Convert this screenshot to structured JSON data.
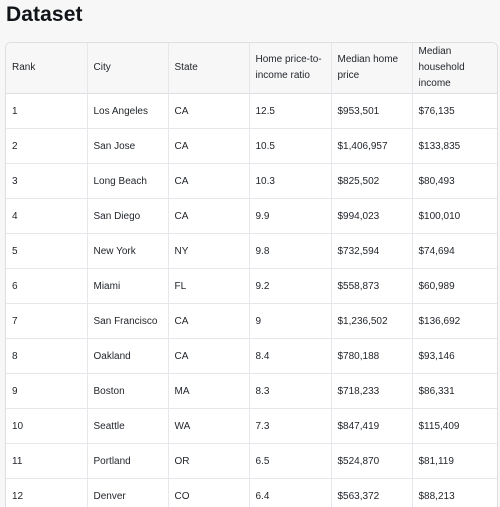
{
  "page": {
    "title": "Dataset"
  },
  "table": {
    "columns": [
      "Rank",
      "City",
      "State",
      "Home price-to-income ratio",
      "Median home price",
      "Median household income"
    ],
    "rows": [
      [
        "1",
        "Los Angeles",
        "CA",
        "12.5",
        "$953,501",
        "$76,135"
      ],
      [
        "2",
        "San Jose",
        "CA",
        "10.5",
        "$1,406,957",
        "$133,835"
      ],
      [
        "3",
        "Long Beach",
        "CA",
        "10.3",
        "$825,502",
        "$80,493"
      ],
      [
        "4",
        "San Diego",
        "CA",
        "9.9",
        "$994,023",
        "$100,010"
      ],
      [
        "5",
        "New York",
        "NY",
        "9.8",
        "$732,594",
        "$74,694"
      ],
      [
        "6",
        "Miami",
        "FL",
        "9.2",
        "$558,873",
        "$60,989"
      ],
      [
        "7",
        "San Francisco",
        "CA",
        "9",
        "$1,236,502",
        "$136,692"
      ],
      [
        "8",
        "Oakland",
        "CA",
        "8.4",
        "$780,188",
        "$93,146"
      ],
      [
        "9",
        "Boston",
        "MA",
        "8.3",
        "$718,233",
        "$86,331"
      ],
      [
        "10",
        "Seattle",
        "WA",
        "7.3",
        "$847,419",
        "$115,409"
      ],
      [
        "11",
        "Portland",
        "OR",
        "6.5",
        "$524,870",
        "$81,119"
      ],
      [
        "12",
        "Denver",
        "CO",
        "6.4",
        "$563,372",
        "$88,213"
      ]
    ]
  }
}
